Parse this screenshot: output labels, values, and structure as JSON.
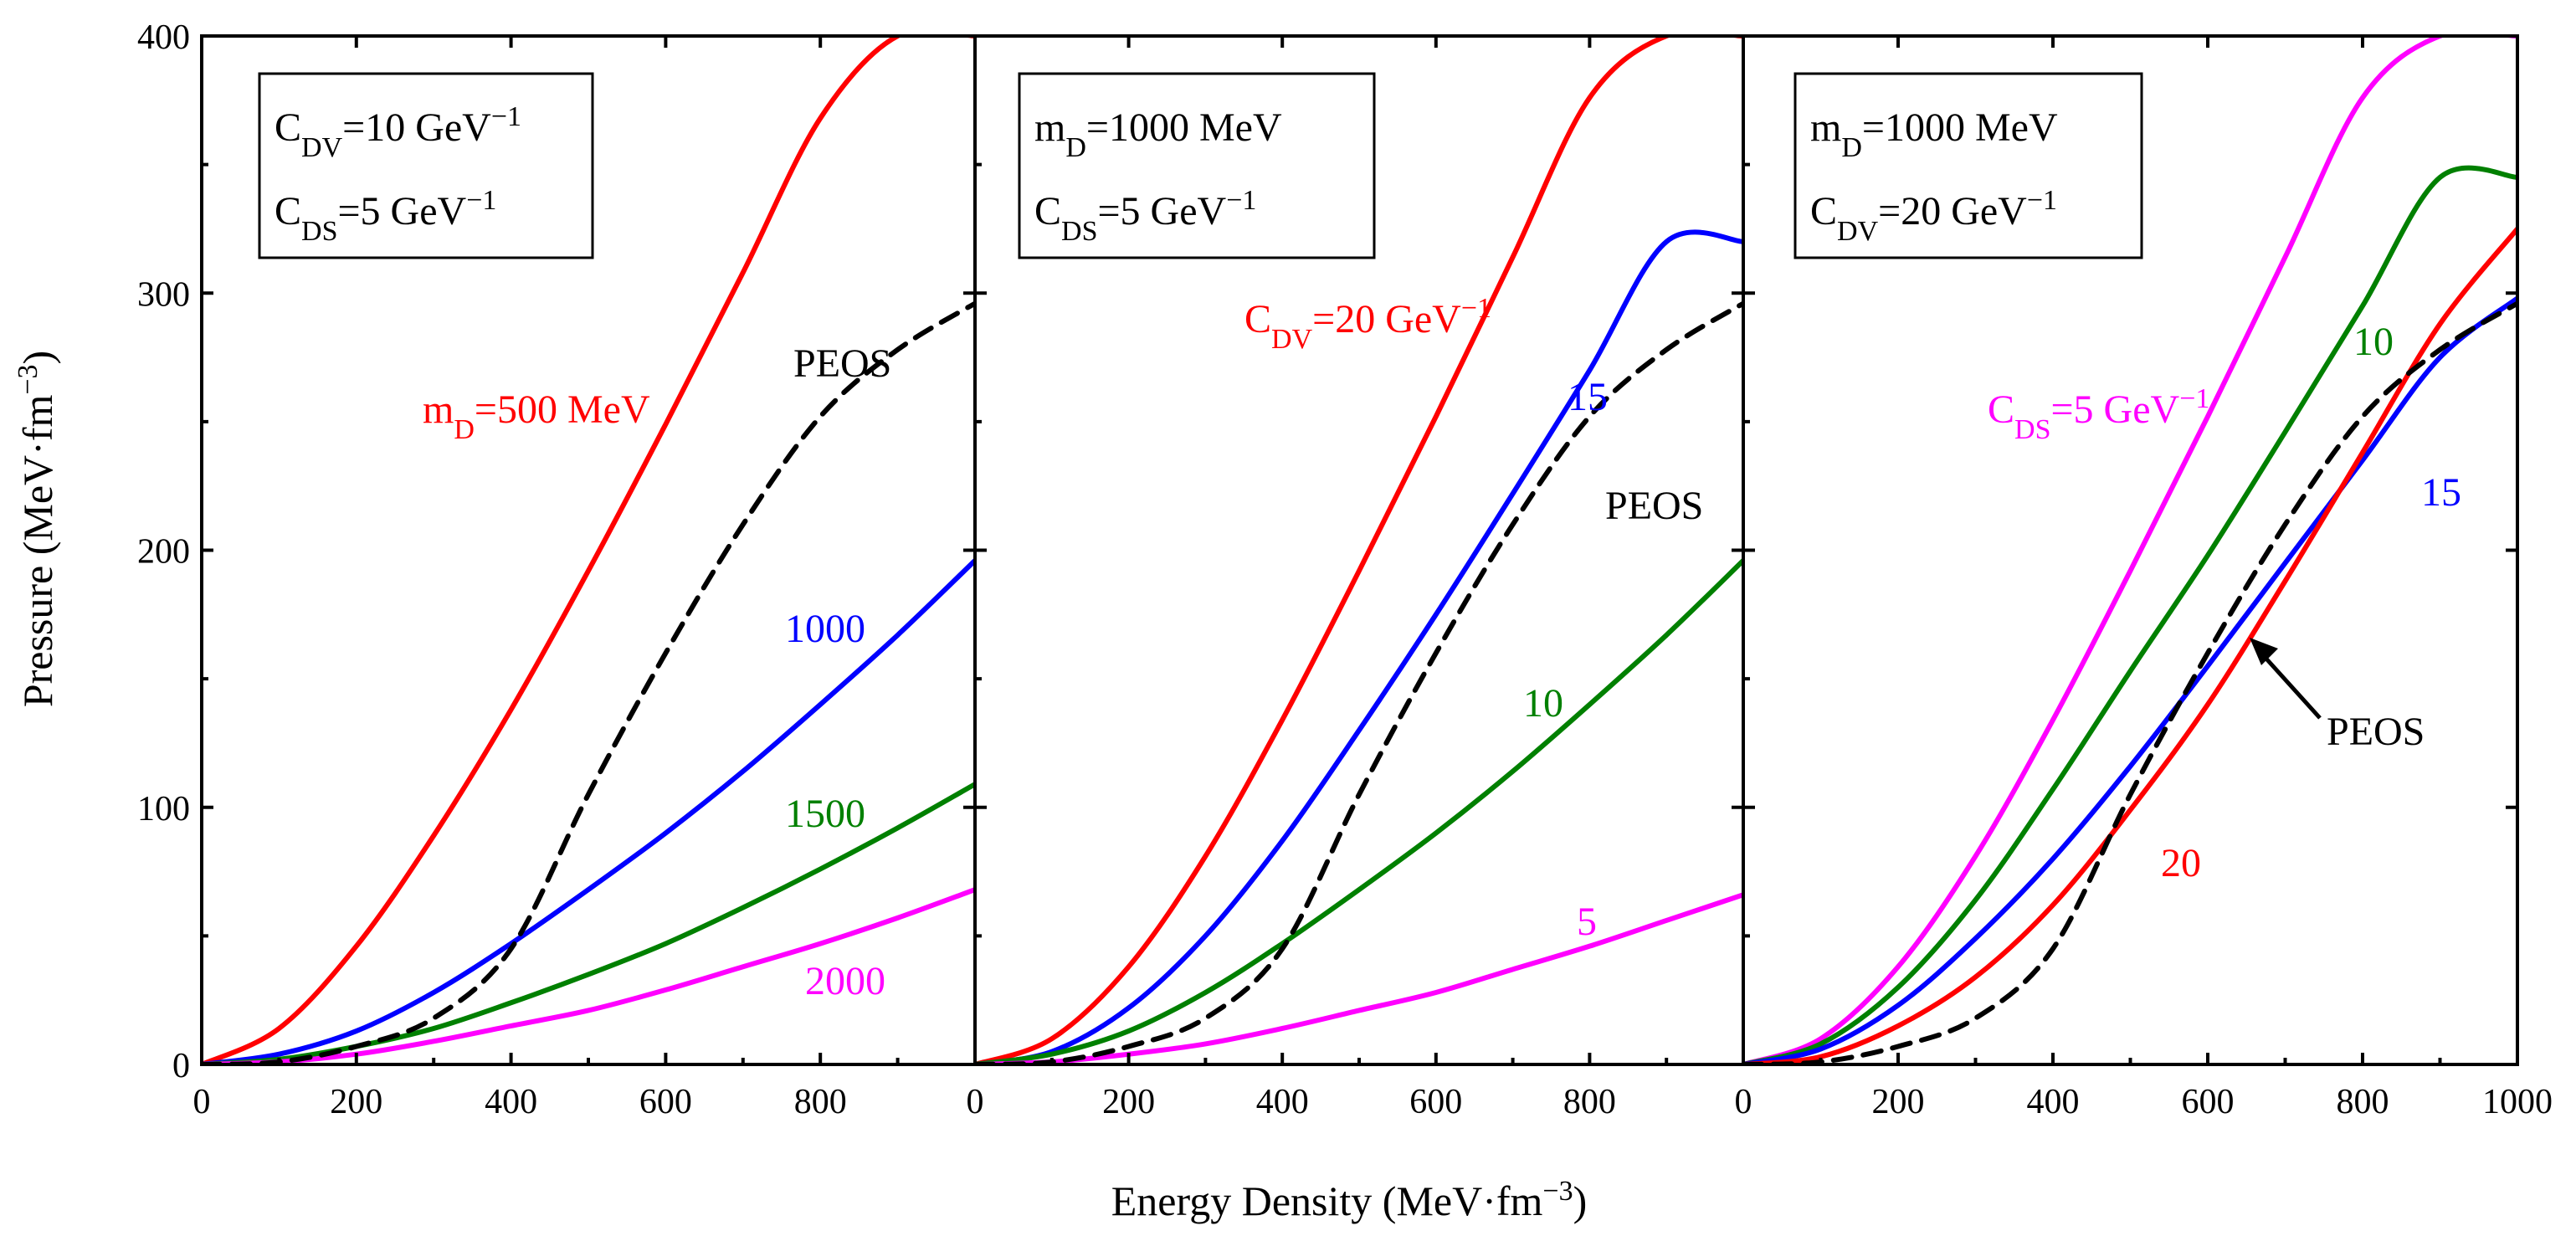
{
  "chart_data": {
    "type": "line",
    "ylabel": "Pressure (MeV·fm",
    "ylabel_sup": "−3",
    "ylabel_close": ")",
    "xlabel": "Energy Density (MeV·fm",
    "xlabel_sup": "−3",
    "xlabel_close": ")",
    "xlim": [
      0,
      1000
    ],
    "ylim": [
      0,
      400
    ],
    "x_ticks": [
      0,
      200,
      400,
      600,
      800,
      1000
    ],
    "x_tick_labels_inner": [
      "0",
      "200",
      "400",
      "600",
      "800",
      ""
    ],
    "x_tick_labels_last": [
      "0",
      "200",
      "400",
      "600",
      "800",
      "1000"
    ],
    "y_ticks": [
      0,
      100,
      200,
      300,
      400
    ],
    "y_tick_labels": [
      "0",
      "100",
      "200",
      "300",
      "400"
    ],
    "x": [
      0,
      100,
      200,
      300,
      400,
      500,
      600,
      700,
      800,
      900,
      1000
    ],
    "panels": [
      {
        "legend": [
          {
            "main": "C",
            "sub": "DV",
            "rest": "=10 GeV",
            "sup": "−1"
          },
          {
            "main": "C",
            "sub": "DS",
            "rest": "=5 GeV",
            "sup": "−1"
          }
        ],
        "series": [
          {
            "name": "m_D=500 MeV",
            "color": "#ff0000",
            "dashed": false,
            "values": [
              0,
              14,
              46,
              89,
              138,
              192,
              249,
              308,
              368,
              400,
              400
            ]
          },
          {
            "name": "m_D=1000 MeV",
            "color": "#0000ff",
            "dashed": false,
            "values": [
              0,
              4,
              13,
              28,
              47,
              68,
              90,
              114,
              140,
              167,
              196
            ]
          },
          {
            "name": "m_D=1500 MeV",
            "color": "#008000",
            "dashed": false,
            "values": [
              0,
              2,
              7,
              14,
              24,
              35,
              47,
              61,
              76,
              92,
              109
            ]
          },
          {
            "name": "m_D=2000 MeV",
            "color": "#ff00ff",
            "dashed": false,
            "values": [
              0,
              1,
              4,
              9,
              15,
              21,
              29,
              38,
              47,
              57,
              68
            ]
          },
          {
            "name": "PEOS",
            "color": "#000000",
            "dashed": true,
            "values": [
              0,
              1,
              7,
              18,
              45,
              105,
              160,
              210,
              252,
              278,
              296
            ]
          }
        ],
        "annotations": [
          {
            "main": "m",
            "sub": "D",
            "rest": "=500 MeV",
            "sup": "",
            "color": "#ff0000"
          },
          {
            "main": "PEOS",
            "sub": "",
            "rest": "",
            "sup": "",
            "color": "#000000"
          },
          {
            "main": "1000",
            "sub": "",
            "rest": "",
            "sup": "",
            "color": "#0000ff"
          },
          {
            "main": "1500",
            "sub": "",
            "rest": "",
            "sup": "",
            "color": "#008000"
          },
          {
            "main": "2000",
            "sub": "",
            "rest": "",
            "sup": "",
            "color": "#ff00ff"
          }
        ]
      },
      {
        "legend": [
          {
            "main": "m",
            "sub": "D",
            "rest": "=1000 MeV",
            "sup": ""
          },
          {
            "main": "C",
            "sub": "DS",
            "rest": "=5 GeV",
            "sup": "−1"
          }
        ],
        "series": [
          {
            "name": "C_DV=20 GeV^-1",
            "color": "#ff0000",
            "dashed": false,
            "values": [
              0,
              10,
              38,
              81,
              134,
              192,
              252,
              314,
              376,
              400,
              400
            ]
          },
          {
            "name": "C_DV=15 GeV^-1",
            "color": "#0000ff",
            "dashed": false,
            "values": [
              0,
              5,
              22,
              50,
              87,
              130,
              175,
              222,
              270,
              320,
              320
            ]
          },
          {
            "name": "C_DV=10 GeV^-1",
            "color": "#008000",
            "dashed": false,
            "values": [
              0,
              4,
              13,
              28,
              47,
              68,
              90,
              114,
              140,
              167,
              196
            ]
          },
          {
            "name": "C_DV=5 GeV^-1",
            "color": "#ff00ff",
            "dashed": false,
            "values": [
              0,
              1,
              4,
              8,
              14,
              21,
              28,
              37,
              46,
              56,
              66
            ]
          },
          {
            "name": "PEOS",
            "color": "#000000",
            "dashed": true,
            "values": [
              0,
              1,
              7,
              18,
              45,
              105,
              160,
              210,
              252,
              278,
              296
            ]
          }
        ],
        "annotations": [
          {
            "main": "C",
            "sub": "DV",
            "rest": "=20 GeV",
            "sup": "−1",
            "color": "#ff0000"
          },
          {
            "main": "15",
            "sub": "",
            "rest": "",
            "sup": "",
            "color": "#0000ff"
          },
          {
            "main": "PEOS",
            "sub": "",
            "rest": "",
            "sup": "",
            "color": "#000000"
          },
          {
            "main": "10",
            "sub": "",
            "rest": "",
            "sup": "",
            "color": "#008000"
          },
          {
            "main": "5",
            "sub": "",
            "rest": "",
            "sup": "",
            "color": "#ff00ff"
          }
        ]
      },
      {
        "legend": [
          {
            "main": "m",
            "sub": "D",
            "rest": "=1000 MeV",
            "sup": ""
          },
          {
            "main": "C",
            "sub": "DV",
            "rest": "=20 GeV",
            "sup": "−1"
          }
        ],
        "series": [
          {
            "name": "C_DS=5 GeV^-1",
            "color": "#ff00ff",
            "dashed": false,
            "values": [
              0,
              10,
              38,
              81,
              134,
              192,
              252,
              314,
              376,
              400,
              400
            ]
          },
          {
            "name": "C_DS=10 GeV^-1",
            "color": "#008000",
            "dashed": false,
            "values": [
              0,
              8,
              30,
              64,
              107,
              153,
              198,
              246,
              295,
              345,
              345
            ]
          },
          {
            "name": "C_DS=15 GeV^-1",
            "color": "#0000ff",
            "dashed": false,
            "values": [
              0,
              6,
              23,
              49,
              80,
              116,
              155,
              195,
              235,
              275,
              298
            ]
          },
          {
            "name": "C_DS=20 GeV^-1",
            "color": "#ff0000",
            "dashed": false,
            "values": [
              0,
              3,
              15,
              34,
              62,
              99,
              140,
              188,
              238,
              288,
              325
            ]
          },
          {
            "name": "PEOS",
            "color": "#000000",
            "dashed": true,
            "values": [
              0,
              1,
              7,
              18,
              45,
              105,
              160,
              210,
              252,
              278,
              296
            ]
          }
        ],
        "annotations": [
          {
            "main": "C",
            "sub": "DS",
            "rest": "=5 GeV",
            "sup": "−1",
            "color": "#ff00ff"
          },
          {
            "main": "10",
            "sub": "",
            "rest": "",
            "sup": "",
            "color": "#008000"
          },
          {
            "main": "15",
            "sub": "",
            "rest": "",
            "sup": "",
            "color": "#0000ff"
          },
          {
            "main": "PEOS",
            "sub": "",
            "rest": "",
            "sup": "",
            "color": "#000000"
          },
          {
            "main": "20",
            "sub": "",
            "rest": "",
            "sup": "",
            "color": "#ff0000"
          }
        ]
      }
    ]
  }
}
